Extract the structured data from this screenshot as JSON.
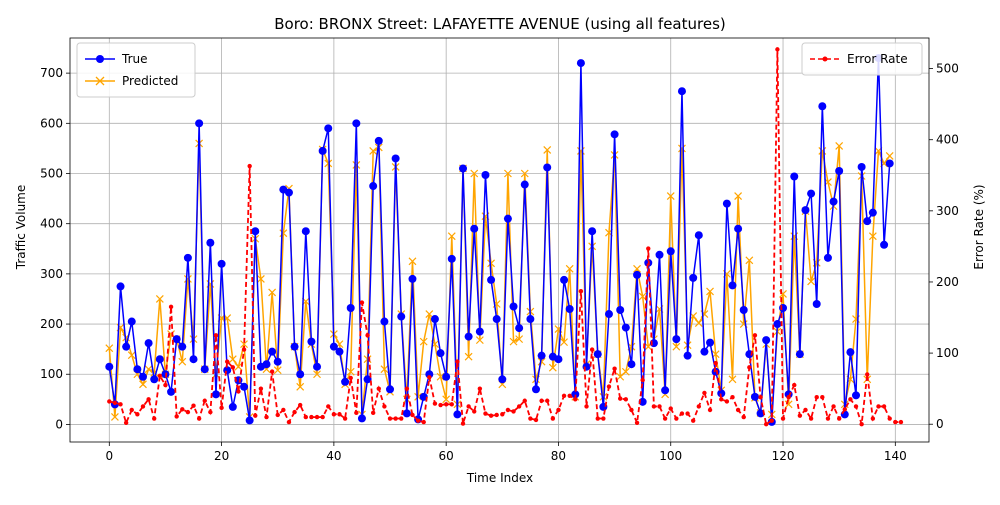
{
  "chart_data": {
    "type": "line",
    "title": "Boro: BRONX Street: LAFAYETTE AVENUE (using all features)",
    "xlabel": "Time Index",
    "ylabel": "Traffic Volume",
    "y2label": "Error Rate (%)",
    "xlim": [
      -7,
      146
    ],
    "ylim": [
      -35,
      770
    ],
    "y2lim": [
      -25,
      543
    ],
    "xticks": [
      0,
      20,
      40,
      60,
      80,
      100,
      120,
      140
    ],
    "yticks": [
      0,
      100,
      200,
      300,
      400,
      500,
      600,
      700
    ],
    "y2ticks": [
      0,
      100,
      200,
      300,
      400,
      500
    ],
    "grid": true,
    "legend_left_position": "upper-left",
    "legend_right_position": "upper-right",
    "series": [
      {
        "name": "True",
        "color": "#0000ff",
        "marker": "circle",
        "axis": "left",
        "values": [
          115,
          40,
          275,
          155,
          205,
          110,
          95,
          162,
          90,
          130,
          100,
          65,
          170,
          155,
          332,
          130,
          600,
          110,
          362,
          60,
          320,
          108,
          35,
          88,
          75,
          8,
          385,
          115,
          120,
          145,
          125,
          468,
          462,
          155,
          100,
          385,
          165,
          115,
          545,
          590,
          155,
          145,
          85,
          232,
          600,
          12,
          90,
          475,
          565,
          205,
          70,
          530,
          215,
          22,
          290,
          10,
          55,
          100,
          210,
          142,
          95,
          330,
          20,
          510,
          175,
          390,
          185,
          497,
          288,
          210,
          90,
          410,
          235,
          192,
          478,
          210,
          70,
          137,
          512,
          135,
          130,
          288,
          230,
          60,
          720,
          115,
          385,
          140,
          35,
          220,
          578,
          228,
          193,
          120,
          298,
          45,
          322,
          162,
          338,
          68,
          345,
          170,
          664,
          137,
          292,
          377,
          145,
          163,
          105,
          62,
          440,
          277,
          390,
          228,
          140,
          55,
          22,
          168,
          5,
          200,
          232,
          60,
          494,
          140,
          427,
          460,
          240,
          634,
          332,
          444,
          505,
          20,
          144,
          58,
          513,
          405,
          422,
          730,
          358,
          520
        ],
        "label": ""
      },
      {
        "name": "Predicted",
        "color": "#ffa500",
        "marker": "x",
        "axis": "left",
        "values": [
          152,
          15,
          193,
          173,
          138,
          100,
          80,
          110,
          103,
          250,
          100,
          180,
          170,
          125,
          290,
          170,
          560,
          110,
          280,
          100,
          212,
          212,
          130,
          115,
          160,
          15,
          370,
          290,
          110,
          263,
          108,
          381,
          470,
          155,
          75,
          245,
          160,
          100,
          548,
          520,
          180,
          160,
          80,
          105,
          517,
          20,
          130,
          545,
          552,
          110,
          65,
          513,
          220,
          50,
          325,
          55,
          165,
          220,
          160,
          95,
          50,
          375,
          40,
          510,
          135,
          500,
          168,
          415,
          321,
          240,
          80,
          500,
          165,
          170,
          500,
          225,
          90,
          125,
          547,
          113,
          190,
          164,
          310,
          55,
          545,
          120,
          355,
          140,
          55,
          382,
          537,
          95,
          105,
          155,
          310,
          255,
          155,
          170,
          230,
          60,
          455,
          155,
          550,
          158,
          216,
          202,
          220,
          265,
          140,
          68,
          300,
          90,
          455,
          200,
          327,
          53,
          23,
          160,
          20,
          185,
          260,
          40,
          375,
          140,
          425,
          285,
          322,
          545,
          483,
          435,
          555,
          40,
          90,
          210,
          495,
          90,
          375,
          545,
          520,
          535
        ],
        "label": ""
      },
      {
        "name": "Error Rate",
        "color": "#ff0000",
        "marker": "point",
        "axis": "right",
        "values": [
          32,
          30,
          28,
          2,
          20,
          14,
          25,
          35,
          8,
          68,
          55,
          165,
          11,
          21,
          17,
          26,
          8,
          33,
          17,
          125,
          23,
          88,
          80,
          46,
          105,
          363,
          12,
          50,
          10,
          74,
          13,
          20,
          3,
          17,
          27,
          10,
          10,
          10,
          10,
          25,
          14,
          14,
          8,
          65,
          16,
          171,
          125,
          16,
          50,
          25,
          8,
          8,
          8,
          50,
          13,
          5,
          3,
          66,
          29,
          27,
          28,
          28,
          88,
          1,
          25,
          18,
          50,
          15,
          12,
          13,
          14,
          20,
          18,
          25,
          33,
          8,
          6,
          33,
          33,
          8,
          20,
          40,
          40,
          35,
          187,
          25,
          105,
          8,
          8,
          53,
          78,
          36,
          35,
          20,
          2,
          62,
          247,
          25,
          25,
          8,
          22,
          8,
          15,
          15,
          5,
          25,
          44,
          20,
          86,
          35,
          32,
          38,
          20,
          10,
          80,
          125,
          38,
          0,
          5,
          527,
          8,
          38,
          55,
          12,
          20,
          8,
          38,
          38,
          8,
          25,
          8,
          21,
          35,
          25,
          0,
          70,
          8,
          25,
          25,
          8,
          3,
          3
        ],
        "label": ""
      }
    ]
  }
}
